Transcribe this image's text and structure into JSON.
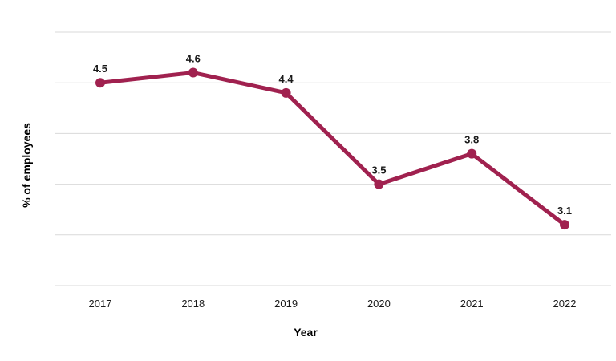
{
  "chart_data": {
    "type": "line",
    "title": "",
    "xlabel": "Year",
    "ylabel": "% of employees",
    "categories": [
      "2017",
      "2018",
      "2019",
      "2020",
      "2021",
      "2022"
    ],
    "series": [
      {
        "values": [
          4.5,
          4.6,
          4.4,
          3.5,
          3.8,
          3.1
        ],
        "color": "#a0214f"
      }
    ],
    "data_labels": [
      "4.5",
      "4.6",
      "4.4",
      "3.5",
      "3.8",
      "3.1"
    ],
    "ylim": [
      2.5,
      5.0
    ],
    "y_gridlines": [
      2.5,
      3.0,
      3.5,
      4.0,
      4.5,
      5.0
    ],
    "y_tick_labels_shown": false,
    "grid": true,
    "legend": "none"
  }
}
